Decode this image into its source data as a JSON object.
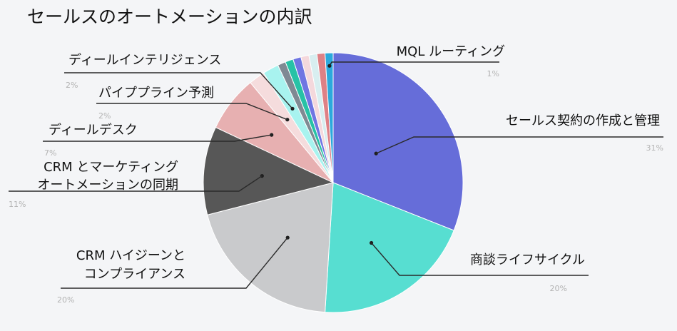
{
  "title": "セールスのオートメーションの内訳",
  "chart_data": {
    "type": "pie",
    "title": "セールスのオートメーションの内訳",
    "slices": [
      {
        "label": "セールス契約の作成と管理",
        "pct_label": "31%",
        "value": 31,
        "color": "#666dd9"
      },
      {
        "label": "商談ライフサイクル",
        "pct_label": "20%",
        "value": 20,
        "color": "#57ded1"
      },
      {
        "label": "CRM ハイジーンと コンプライアンス",
        "pct_label": "20%",
        "value": 20,
        "color": "#c9cacc"
      },
      {
        "label": "CRM とマーケティング オートメーションの同期",
        "pct_label": "11%",
        "value": 11,
        "color": "#575757"
      },
      {
        "label": "ディールデスク",
        "pct_label": "7%",
        "value": 7,
        "color": "#e7b0b1"
      },
      {
        "label": "パイププライン予測",
        "pct_label": "2%",
        "value": 2,
        "color": "#f5dcdd"
      },
      {
        "label": "ディールインテリジェンス",
        "pct_label": "2%",
        "value": 2,
        "color": "#a8f3ef"
      },
      {
        "label": "",
        "pct_label": "",
        "value": 1,
        "color": "#7f8a93"
      },
      {
        "label": "",
        "pct_label": "",
        "value": 1,
        "color": "#27c2a6"
      },
      {
        "label": "",
        "pct_label": "",
        "value": 1,
        "color": "#6f75e2"
      },
      {
        "label": "",
        "pct_label": "",
        "value": 1,
        "color": "#f4d8dc"
      },
      {
        "label": "",
        "pct_label": "",
        "value": 1,
        "color": "#d8eef0"
      },
      {
        "label": "",
        "pct_label": "",
        "value": 1,
        "color": "#de8186"
      },
      {
        "label": "MQL ルーティング",
        "pct_label": "1%",
        "value": 1,
        "color": "#2ca9dc"
      }
    ]
  }
}
